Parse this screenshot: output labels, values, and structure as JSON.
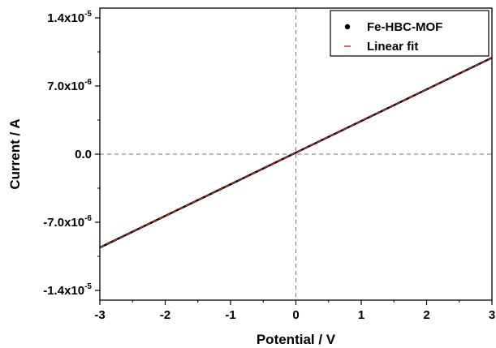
{
  "chart_data": {
    "type": "line",
    "xlabel": "Potential / V",
    "ylabel": "Current / A",
    "xlim": [
      -3,
      3
    ],
    "ylim": [
      -1.5e-05,
      1.5e-05
    ],
    "x_ticks": [
      -3,
      -2,
      -1,
      0,
      1,
      2,
      3
    ],
    "x_tick_labels": [
      "-3",
      "-2",
      "-1",
      "0",
      "1",
      "2",
      "3"
    ],
    "y_ticks": [
      -1.4e-05,
      -7e-06,
      0.0,
      7e-06,
      1.4e-05
    ],
    "y_tick_labels": [
      {
        "mantissa": "-1.4x10",
        "exp": "-5"
      },
      {
        "mantissa": "-7.0x10",
        "exp": "-6"
      },
      {
        "mantissa": "0.0",
        "exp": ""
      },
      {
        "mantissa": "7.0x10",
        "exp": "-6"
      },
      {
        "mantissa": "1.4x10",
        "exp": "-5"
      }
    ],
    "grid": false,
    "reference_lines": {
      "x": 0,
      "y": 0,
      "style": "dashed"
    },
    "legend_position": "top-right",
    "series": [
      {
        "name": "Fe-HBC-MOF",
        "marker": "dot",
        "color": "#000000",
        "x": [
          -3,
          3
        ],
        "y": [
          -9.6e-06,
          9.9e-06
        ]
      },
      {
        "name": "Linear fit",
        "marker": "dash",
        "color": "#d9372c",
        "x": [
          -3,
          3
        ],
        "y": [
          -9.6e-06,
          9.9e-06
        ]
      }
    ]
  }
}
